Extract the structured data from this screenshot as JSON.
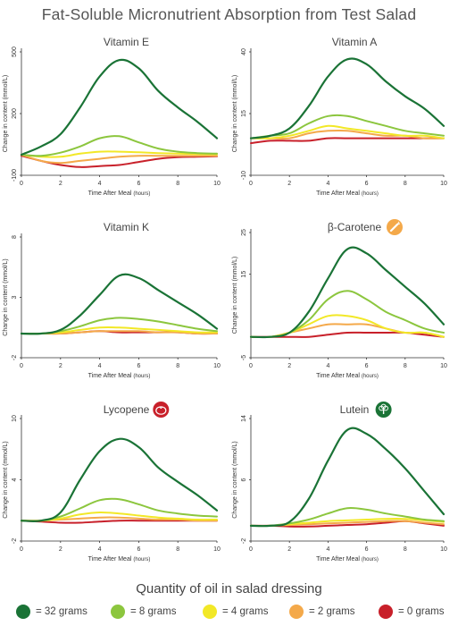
{
  "title": "Fat-Soluble Micronutrient Absorption from Test Salad",
  "legend_title": "Quantity of oil in salad dressing",
  "legend": [
    {
      "label": "= 32 grams",
      "color": "#1a7336"
    },
    {
      "label": "= 8 grams",
      "color": "#8cc63e"
    },
    {
      "label": "= 4 grams",
      "color": "#f2e827"
    },
    {
      "label": "= 2 grams",
      "color": "#f4a94a"
    },
    {
      "label": "= 0 grams",
      "color": "#c8202a"
    }
  ],
  "chart_data": [
    {
      "type": "line",
      "title": "Vitamin E",
      "icon": null,
      "xlabel": "Time After Meal",
      "xlabel_unit": "(hours)",
      "ylabel": "Change in content (mmol/L)",
      "xlim": [
        0,
        10
      ],
      "ylim": [
        -100,
        500
      ],
      "xticks": [
        "0",
        "2",
        "4",
        "6",
        "8",
        "10"
      ],
      "yticks": [
        "-100",
        "200",
        "500"
      ],
      "x": [
        0,
        1,
        2,
        3,
        4,
        5,
        6,
        7,
        8,
        9,
        10
      ],
      "series": [
        {
          "values": [
            0,
            40,
            100,
            230,
            380,
            460,
            420,
            310,
            230,
            160,
            80
          ]
        },
        {
          "values": [
            0,
            -5,
            10,
            40,
            80,
            90,
            60,
            30,
            15,
            8,
            5
          ]
        },
        {
          "values": [
            0,
            -10,
            -10,
            5,
            15,
            15,
            12,
            8,
            5,
            3,
            2
          ]
        },
        {
          "values": [
            0,
            -30,
            -40,
            -30,
            -20,
            -10,
            -5,
            -5,
            -5,
            -5,
            -5
          ]
        },
        {
          "values": [
            -5,
            -30,
            -50,
            -60,
            -55,
            -50,
            -35,
            -20,
            -12,
            -10,
            -8
          ]
        }
      ]
    },
    {
      "type": "line",
      "title": "Vitamin A",
      "icon": null,
      "xlabel": "Time After Meal",
      "xlabel_unit": "(hours)",
      "ylabel": "Change in content (mmol/L)",
      "xlim": [
        0,
        10
      ],
      "ylim": [
        -10,
        40
      ],
      "xticks": [
        "0",
        "2",
        "4",
        "6",
        "8",
        "10"
      ],
      "yticks": [
        "-10",
        "15",
        "40"
      ],
      "x": [
        0,
        1,
        2,
        3,
        4,
        5,
        6,
        7,
        8,
        9,
        10
      ],
      "series": [
        {
          "values": [
            5,
            6,
            9,
            18,
            30,
            37,
            35,
            28,
            22,
            17,
            10
          ]
        },
        {
          "values": [
            5,
            6,
            7,
            11,
            14,
            14,
            12,
            10,
            8,
            7,
            6
          ]
        },
        {
          "values": [
            5,
            5,
            6,
            8,
            10,
            9,
            8,
            7,
            6,
            6,
            5
          ]
        },
        {
          "values": [
            5,
            5,
            5,
            7,
            8,
            8,
            7,
            6,
            6,
            5,
            5
          ]
        },
        {
          "values": [
            3,
            4,
            4,
            4,
            5,
            5,
            5,
            5,
            5,
            5,
            5
          ]
        }
      ]
    },
    {
      "type": "line",
      "title": "Vitamin K",
      "icon": null,
      "xlabel": "Time After Meal",
      "xlabel_unit": "(hours)",
      "ylabel": "Change in content (mmol/L)",
      "xlim": [
        0,
        10
      ],
      "ylim": [
        -2,
        8
      ],
      "xticks": [
        "0",
        "2",
        "4",
        "6",
        "8",
        "10"
      ],
      "yticks": [
        "-2",
        "3",
        "8"
      ],
      "x": [
        0,
        1,
        2,
        3,
        4,
        5,
        6,
        7,
        8,
        9,
        10
      ],
      "series": [
        {
          "values": [
            0,
            0,
            0.3,
            1.5,
            3.2,
            4.8,
            4.6,
            3.6,
            2.6,
            1.6,
            0.4
          ]
        },
        {
          "values": [
            0,
            0,
            0.2,
            0.6,
            1.1,
            1.3,
            1.2,
            1.0,
            0.7,
            0.4,
            0.2
          ]
        },
        {
          "values": [
            0,
            0,
            0.1,
            0.3,
            0.5,
            0.5,
            0.4,
            0.3,
            0.2,
            0.1,
            0.1
          ]
        },
        {
          "values": [
            0,
            0,
            0,
            0.1,
            0.2,
            0.2,
            0.2,
            0.1,
            0.1,
            0,
            0
          ]
        },
        {
          "values": [
            0,
            0,
            0,
            0.1,
            0.2,
            0.1,
            0.1,
            0.1,
            0.1,
            0,
            0
          ]
        }
      ]
    },
    {
      "type": "line",
      "title": "β-Carotene",
      "icon": "carrot-icon",
      "icon_color": "#f4a94a",
      "xlabel": "Time After Meal",
      "xlabel_unit": "(hours)",
      "ylabel": "Change in content (mmol/L)",
      "xlim": [
        0,
        10
      ],
      "ylim": [
        -5,
        25
      ],
      "xticks": [
        "0",
        "2",
        "4",
        "6",
        "8",
        "10"
      ],
      "yticks": [
        "-5",
        "15",
        "25"
      ],
      "x": [
        0,
        1,
        2,
        3,
        4,
        5,
        6,
        7,
        8,
        9,
        10
      ],
      "series": [
        {
          "values": [
            0,
            0,
            1,
            6,
            14,
            21,
            20,
            16,
            12,
            8,
            3
          ]
        },
        {
          "values": [
            0,
            0,
            1,
            4,
            9,
            11,
            9,
            6,
            4,
            2,
            1
          ]
        },
        {
          "values": [
            0,
            0,
            1,
            3,
            5,
            5,
            4,
            2,
            1,
            1,
            0
          ]
        },
        {
          "values": [
            0,
            0,
            1,
            2,
            3,
            3,
            3,
            2,
            1,
            1,
            0
          ]
        },
        {
          "values": [
            0,
            0,
            0,
            0,
            0.5,
            1,
            1,
            1,
            1,
            0.5,
            0
          ]
        }
      ]
    },
    {
      "type": "line",
      "title": "Lycopene",
      "icon": "tomato-icon",
      "icon_color": "#c8202a",
      "xlabel": "Time After Meal",
      "xlabel_unit": "(hours)",
      "ylabel": "Change in content (mmol/L)",
      "xlim": [
        0,
        10
      ],
      "ylim": [
        -2,
        10
      ],
      "xticks": [
        "0",
        "2",
        "4",
        "6",
        "8",
        "10"
      ],
      "yticks": [
        "-2",
        "4",
        "10"
      ],
      "x": [
        0,
        1,
        2,
        3,
        4,
        5,
        6,
        7,
        8,
        9,
        10
      ],
      "series": [
        {
          "values": [
            0,
            0,
            0.8,
            4,
            6.8,
            8.0,
            7.2,
            5.2,
            3.8,
            2.5,
            1.0
          ]
        },
        {
          "values": [
            0,
            0,
            0.4,
            1.2,
            2.0,
            2.1,
            1.6,
            1.0,
            0.7,
            0.5,
            0.4
          ]
        },
        {
          "values": [
            0,
            0,
            0.2,
            0.6,
            0.8,
            0.7,
            0.5,
            0.3,
            0.2,
            0.1,
            0.1
          ]
        },
        {
          "values": [
            0,
            0,
            0.1,
            0.2,
            0.3,
            0.3,
            0.2,
            0.1,
            0.1,
            0,
            0
          ]
        },
        {
          "values": [
            0,
            -0.1,
            -0.2,
            -0.2,
            -0.1,
            0,
            0,
            0,
            0,
            0,
            0
          ]
        }
      ]
    },
    {
      "type": "line",
      "title": "Lutein",
      "icon": "broccoli-icon",
      "icon_color": "#1a7336",
      "xlabel": "Time After Meal",
      "xlabel_unit": "(hours)",
      "ylabel": "Change in content (mmol/L)",
      "xlim": [
        0,
        10
      ],
      "ylim": [
        -2,
        14
      ],
      "xticks": [
        "0",
        "2",
        "4",
        "6",
        "8",
        "10"
      ],
      "yticks": [
        "-2",
        "6",
        "14"
      ],
      "x": [
        0,
        1,
        2,
        3,
        4,
        5,
        6,
        7,
        8,
        9,
        10
      ],
      "series": [
        {
          "values": [
            0,
            0,
            0.5,
            3.5,
            8.5,
            12.5,
            12,
            10,
            7.5,
            4.5,
            1.5
          ]
        },
        {
          "values": [
            0,
            0,
            0.3,
            0.8,
            1.6,
            2.3,
            2.1,
            1.6,
            1.2,
            0.8,
            0.6
          ]
        },
        {
          "values": [
            0,
            0,
            0.2,
            0.4,
            0.6,
            0.7,
            0.8,
            0.9,
            0.9,
            0.7,
            0.5
          ]
        },
        {
          "values": [
            0,
            0,
            0.1,
            0.2,
            0.3,
            0.4,
            0.5,
            0.6,
            0.6,
            0.4,
            0.2
          ]
        },
        {
          "values": [
            0,
            0,
            -0.1,
            -0.1,
            0,
            0.1,
            0.2,
            0.4,
            0.6,
            0.3,
            0
          ]
        }
      ]
    }
  ]
}
